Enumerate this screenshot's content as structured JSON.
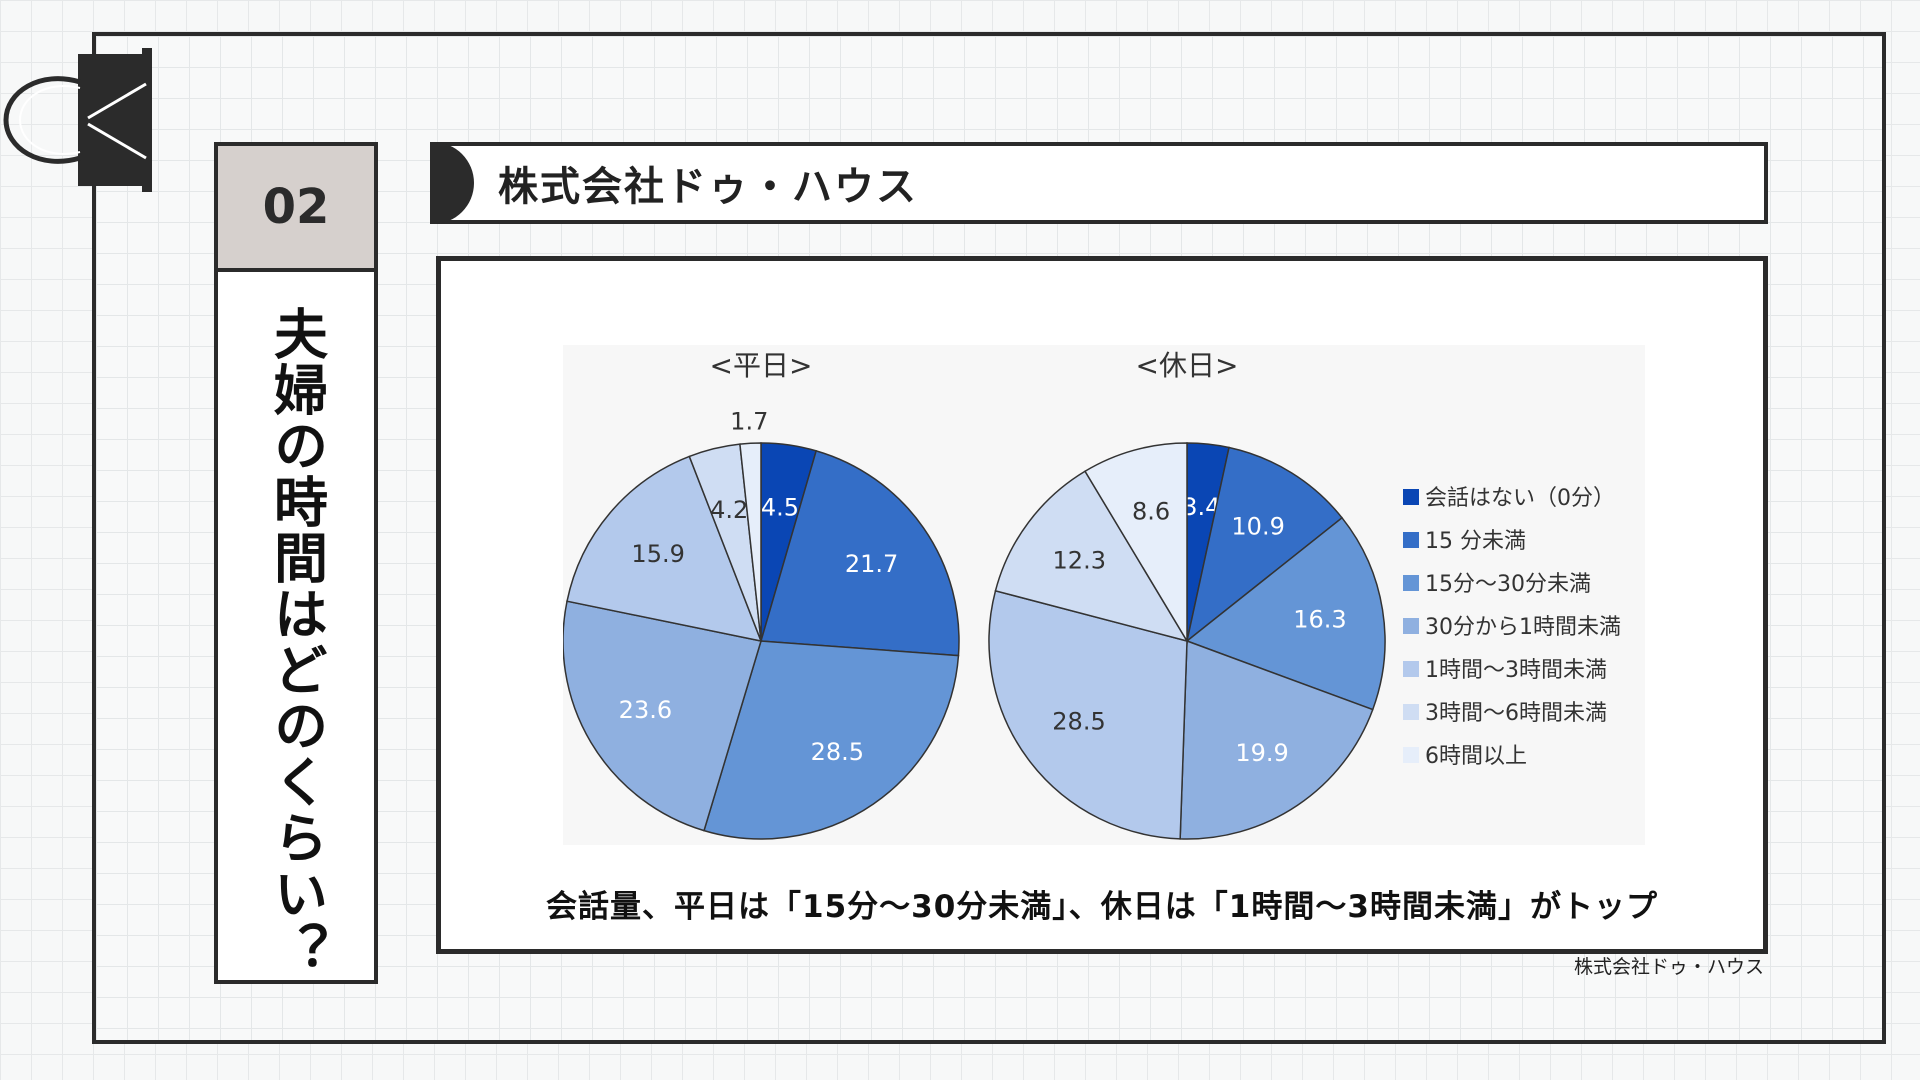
{
  "side_panel": {
    "number": "02",
    "title": "夫婦の時間はどのくらい？"
  },
  "banner": {
    "text": "株式会社ドゥ・ハウス"
  },
  "caption": "会話量、平日は「15分〜30分未満」、休日は「1時間〜3時間未満」がトップ",
  "source": "株式会社ドゥ・ハウス",
  "colors": [
    "#0a46b4",
    "#346ec7",
    "#6495d6",
    "#8fb0e0",
    "#b3c9ec",
    "#cfddf3",
    "#e6eefa"
  ],
  "chart_data": [
    {
      "type": "pie",
      "title": "<平日>",
      "categories": [
        "会話はない（0分）",
        "15分未満",
        "15分〜30分未満",
        "30分から1時間未満",
        "1時間〜3時間未満",
        "3時間〜6時間未満",
        "6時間以上"
      ],
      "values": [
        4.5,
        21.7,
        28.5,
        23.6,
        15.9,
        4.2,
        1.7
      ]
    },
    {
      "type": "pie",
      "title": "<休日>",
      "categories": [
        "会話はない（0分）",
        "15分未満",
        "15分〜30分未満",
        "30分から1時間未満",
        "1時間〜3時間未満",
        "3時間〜6時間未満",
        "6時間以上"
      ],
      "values": [
        3.4,
        10.9,
        16.3,
        19.9,
        28.5,
        12.3,
        8.6
      ]
    }
  ],
  "legend": [
    "会話はない（0分）",
    "15 分未満",
    "15分〜30分未満",
    "30分から1時間未満",
    "1時間〜3時間未満",
    "3時間〜6時間未満",
    "6時間以上"
  ]
}
